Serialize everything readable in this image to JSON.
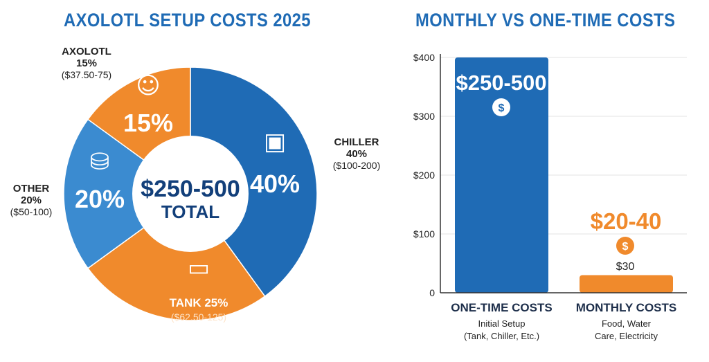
{
  "chart_data": [
    {
      "type": "pie",
      "title": "AXOLOTL SETUP COSTS 2025",
      "center_label": {
        "value": "$250-500",
        "caption": "TOTAL"
      },
      "colors": {
        "blue": "#1f6bb5",
        "light_blue": "#3b8bd0",
        "orange": "#f08a2c"
      },
      "slices": [
        {
          "name": "CHILLER",
          "percent": 40,
          "percent_label": "40%",
          "outer_label": "40%",
          "range": "($100-200)",
          "color": "#1f6bb5",
          "icon": "fan-icon"
        },
        {
          "name": "TANK",
          "percent": 25,
          "percent_label": "TANK 25%",
          "range": "($62.50-125)",
          "color": "#f08a2c",
          "icon": "aquarium-icon"
        },
        {
          "name": "OTHER",
          "percent": 20,
          "percent_label": "20%",
          "outer_label": "20%",
          "range": "($50-100)",
          "color": "#3b8bd0",
          "icon": "supplies-icon"
        },
        {
          "name": "AXOLOTL",
          "percent": 15,
          "percent_label": "15%",
          "outer_label": "15%",
          "range": "($37.50-75)",
          "color": "#f08a2c",
          "icon": "axolotl-icon"
        }
      ]
    },
    {
      "type": "bar",
      "title": "MONTHLY VS ONE-TIME COSTS",
      "ylim": [
        0,
        400
      ],
      "yticks": [
        "0",
        "$100",
        "$200",
        "$300",
        "$400"
      ],
      "grid": true,
      "categories": [
        {
          "label": "ONE-TIME COSTS",
          "sub1": "Initial Setup",
          "sub2": "(Tank, Chiller, Etc.)"
        },
        {
          "label": "MONTHLY COSTS",
          "sub1": "Food, Water",
          "sub2": "Care, Electricity"
        }
      ],
      "values": [
        400,
        30
      ],
      "range_labels": [
        "$250-500",
        "$20-40"
      ],
      "value_labels": [
        "",
        "$30"
      ],
      "colors": [
        "#1f6bb5",
        "#f08a2c"
      ]
    }
  ]
}
